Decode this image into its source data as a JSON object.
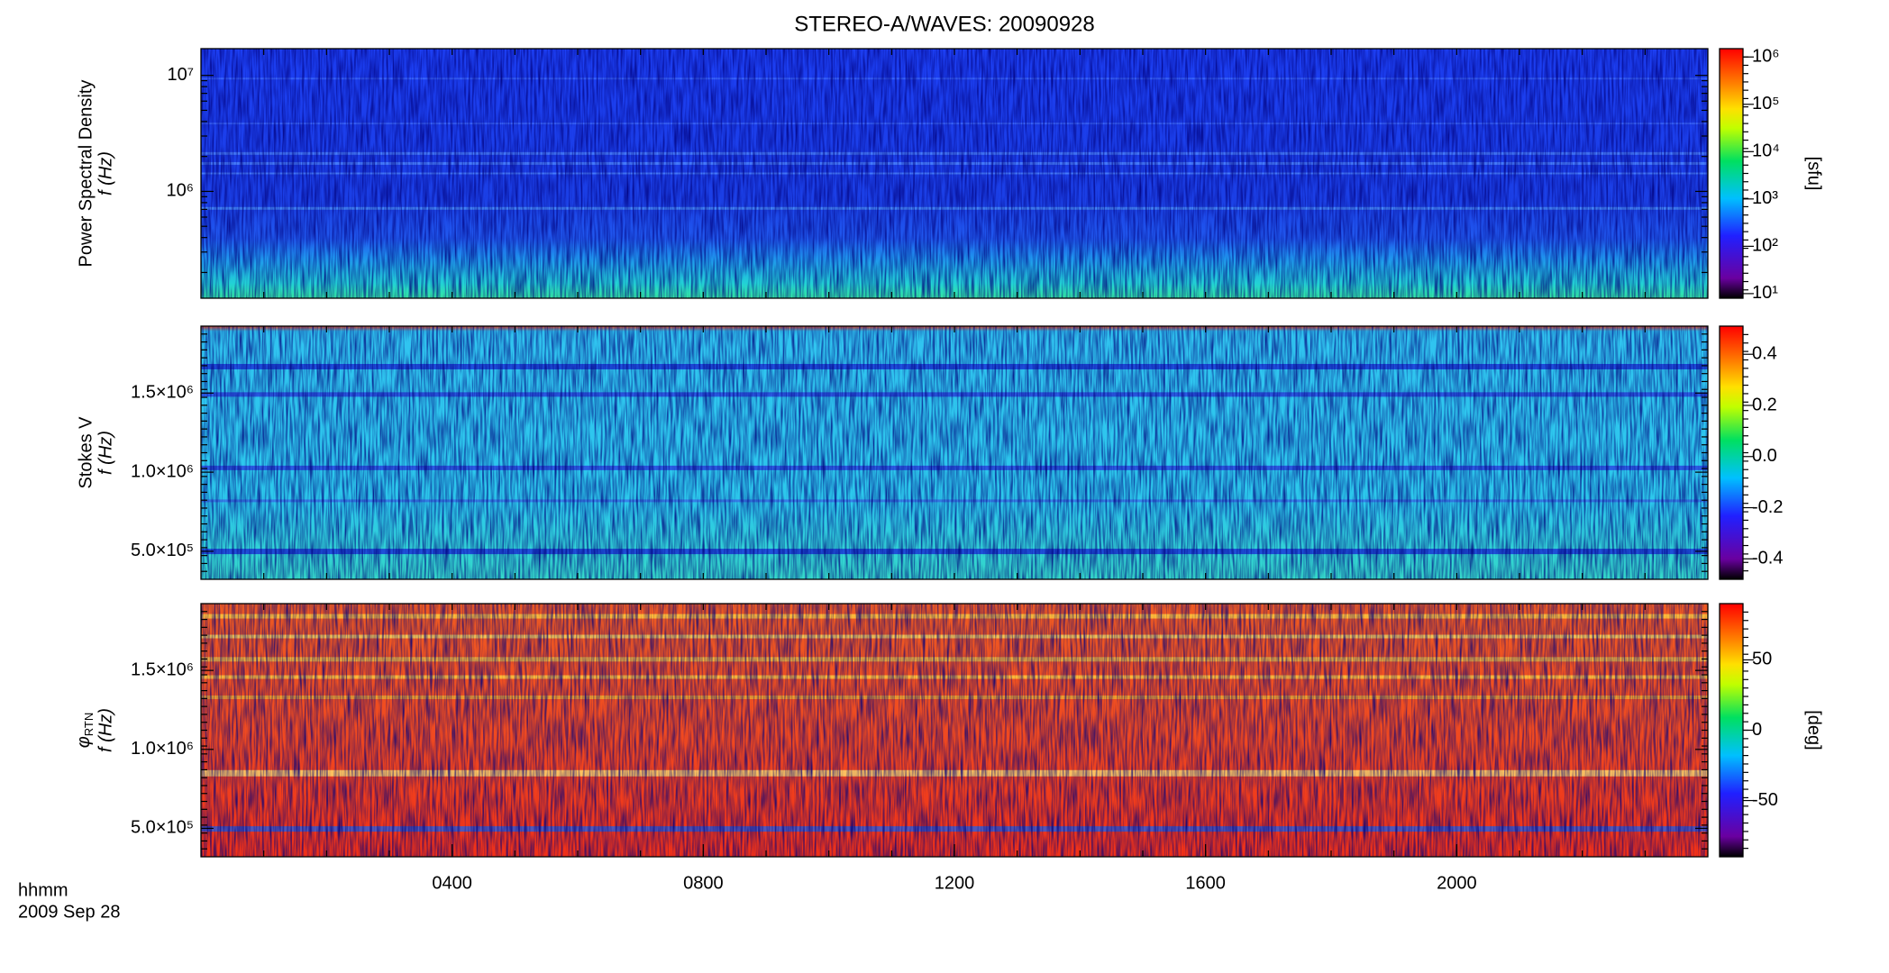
{
  "chart_data": [
    {
      "type": "heatmap",
      "title": "STEREO-A/WAVES: 20090928",
      "ylabel": [
        "Power Spectral Density",
        "f (Hz)"
      ],
      "xlim": [
        0,
        24
      ],
      "ylim": [
        120000,
        17000000
      ],
      "log_y": true,
      "yticks": [
        {
          "value": 1000000,
          "label": "10⁶"
        },
        {
          "value": 10000000,
          "label": "10⁷"
        }
      ],
      "colorbar": {
        "label": "[sfu]",
        "lim": [
          8,
          1500000
        ],
        "log": true,
        "ticks": [
          {
            "value": 10,
            "label": "10¹"
          },
          {
            "value": 100,
            "label": "10²"
          },
          {
            "value": 1000,
            "label": "10³"
          },
          {
            "value": 10000,
            "label": "10⁴"
          },
          {
            "value": 100000,
            "label": "10⁵"
          },
          {
            "value": 1000000,
            "label": "10⁶"
          }
        ]
      }
    },
    {
      "type": "heatmap",
      "ylabel": [
        "Stokes V",
        "f (Hz)"
      ],
      "xlim": [
        0,
        24
      ],
      "ylim": [
        323000,
        1923000
      ],
      "log_y": false,
      "yticks": [
        {
          "value": 500000,
          "label": "5.0×10⁵"
        },
        {
          "value": 1000000,
          "label": "1.0×10⁶"
        },
        {
          "value": 1500000,
          "label": "1.5×10⁶"
        }
      ],
      "colorbar": {
        "lim": [
          -0.48,
          0.51
        ],
        "log": false,
        "ticks": [
          -0.4,
          -0.2,
          {
            "value": 0,
            "label": "0.0"
          },
          0.2,
          0.4
        ]
      }
    },
    {
      "type": "heatmap",
      "ylabel_symbol": "φ",
      "ylabel_subscript": "RTN",
      "ylabel": [
        "f (Hz)"
      ],
      "xlim": [
        0,
        24
      ],
      "ylim": [
        320000,
        1923000
      ],
      "log_y": false,
      "yticks": [
        {
          "value": 500000,
          "label": "5.0×10⁵"
        },
        {
          "value": 1000000,
          "label": "1.0×10⁶"
        },
        {
          "value": 1500000,
          "label": "1.5×10⁶"
        }
      ],
      "xticks": [
        {
          "value": 4,
          "label": "0400"
        },
        {
          "value": 8,
          "label": "0800"
        },
        {
          "value": 12,
          "label": "1200"
        },
        {
          "value": 16,
          "label": "1600"
        },
        {
          "value": 20,
          "label": "2000"
        }
      ],
      "xlabel": "hhmm",
      "xsublabel": "2009 Sep 28",
      "colorbar": {
        "label": "[deg]",
        "lim": [
          -90,
          90
        ],
        "log": false,
        "ticks": [
          -50,
          0,
          50
        ]
      }
    }
  ]
}
